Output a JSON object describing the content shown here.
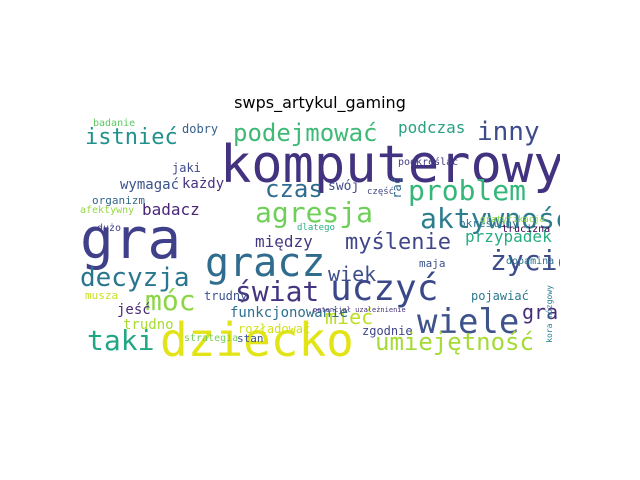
{
  "title": "swps_artykul_gaming",
  "words": [
    {
      "text": "gra",
      "color": "#3f3f8a"
    },
    {
      "text": "komputerowy",
      "color": "#43327f"
    },
    {
      "text": "dziecko",
      "color": "#e3e418"
    },
    {
      "text": "gracz",
      "color": "#2f6c8e"
    },
    {
      "text": "uczyć",
      "color": "#3a4889"
    },
    {
      "text": "agresja",
      "color": "#6fd059"
    },
    {
      "text": "problem",
      "color": "#34b779"
    },
    {
      "text": "aktywność",
      "color": "#2c7d8e"
    },
    {
      "text": "wiele",
      "color": "#3e5389"
    },
    {
      "text": "świat",
      "color": "#453580"
    },
    {
      "text": "życie",
      "color": "#3d4d8a"
    },
    {
      "text": "myślenie",
      "color": "#3f4788"
    },
    {
      "text": "decyzja",
      "color": "#2a768e"
    },
    {
      "text": "umiejętność",
      "color": "#a5db36"
    },
    {
      "text": "czas",
      "color": "#2f6b8e"
    },
    {
      "text": "podejmować",
      "color": "#3eb976"
    },
    {
      "text": "inny",
      "color": "#3e4c8a"
    },
    {
      "text": "móc",
      "color": "#8bd646"
    },
    {
      "text": "taki",
      "color": "#22a785"
    },
    {
      "text": "istnieć",
      "color": "#21918c"
    },
    {
      "text": "podczas",
      "color": "#2ba082"
    },
    {
      "text": "badacz",
      "color": "#482576"
    },
    {
      "text": "przypadek",
      "color": "#26ad81"
    },
    {
      "text": "wiek",
      "color": "#3d4e8a"
    },
    {
      "text": "grać",
      "color": "#472c7a"
    },
    {
      "text": "mieć",
      "color": "#bddf26"
    },
    {
      "text": "między",
      "color": "#453882"
    },
    {
      "text": "wymagać",
      "color": "#3b528b"
    },
    {
      "text": "każdy",
      "color": "#46327e"
    },
    {
      "text": "jaki",
      "color": "#3e4989"
    },
    {
      "text": "dobry",
      "color": "#355f8d"
    },
    {
      "text": "badanie",
      "color": "#5ec962"
    },
    {
      "text": "swój",
      "color": "#3e4a89"
    },
    {
      "text": "część",
      "color": "#3f4788"
    },
    {
      "text": "określony",
      "color": "#2d708e"
    },
    {
      "text": "organizm",
      "color": "#31688e"
    },
    {
      "text": "afektywny",
      "color": "#95d840"
    },
    {
      "text": "dużo",
      "color": "#433e85"
    },
    {
      "text": "dlatego",
      "color": "#29af7f"
    },
    {
      "text": "gratyfikacja",
      "color": "#8fd744"
    },
    {
      "text": "dopamina",
      "color": "#2c728e"
    },
    {
      "text": "maja",
      "color": "#3b528b"
    },
    {
      "text": "musza",
      "color": "#c8e020"
    },
    {
      "text": "jeść",
      "color": "#482878"
    },
    {
      "text": "trudny",
      "color": "#3b528b"
    },
    {
      "text": "funkcjonowanie",
      "color": "#2d708e"
    },
    {
      "text": "pojawiać",
      "color": "#2a788e"
    },
    {
      "text": "trudno",
      "color": "#a8db34"
    },
    {
      "text": "rozładować",
      "color": "#d0e11c"
    },
    {
      "text": "zgodnie",
      "color": "#404588"
    },
    {
      "text": "stan",
      "color": "#3b528b"
    },
    {
      "text": "strategia",
      "color": "#73d056"
    },
    {
      "text": "podkreślać",
      "color": "#433d84"
    },
    {
      "text": "trucizna",
      "color": "#440154"
    },
    {
      "text": "kora mózgowy",
      "color": "#287d8e"
    },
    {
      "text": "rać",
      "color": "#31688e"
    },
    {
      "text": "potencjał uzależnienie",
      "color": "#46327e"
    }
  ]
}
